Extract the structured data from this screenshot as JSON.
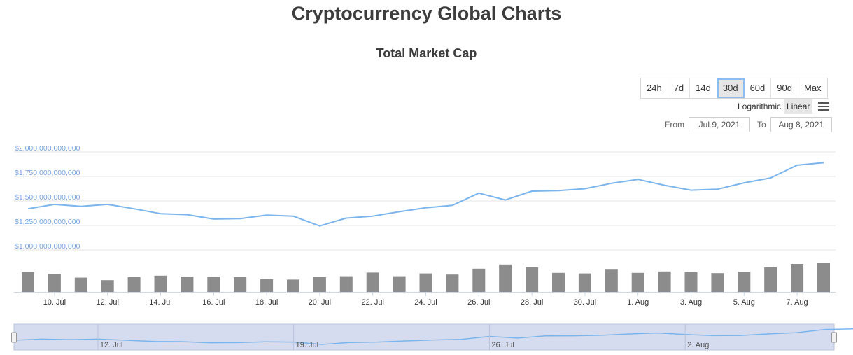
{
  "page": {
    "title": "Cryptocurrency Global Charts"
  },
  "toolbar": {
    "ranges": [
      "24h",
      "7d",
      "14d",
      "30d",
      "60d",
      "90d",
      "Max"
    ],
    "active_range": "30d",
    "scale_logarithmic": "Logarithmic",
    "scale_linear": "Linear",
    "active_scale": "Linear",
    "from_label": "From",
    "to_label": "To",
    "from_value": "Jul 9, 2021",
    "to_value": "Aug 8, 2021",
    "menu_icon": "hamburger-menu-icon"
  },
  "chart_data": {
    "type": "line",
    "title": "Total Market Cap",
    "x": [
      "Jul 9",
      "Jul 10",
      "Jul 11",
      "Jul 12",
      "Jul 13",
      "Jul 14",
      "Jul 15",
      "Jul 16",
      "Jul 17",
      "Jul 18",
      "Jul 19",
      "Jul 20",
      "Jul 21",
      "Jul 22",
      "Jul 23",
      "Jul 24",
      "Jul 25",
      "Jul 26",
      "Jul 27",
      "Jul 28",
      "Jul 29",
      "Jul 30",
      "Jul 31",
      "Aug 1",
      "Aug 2",
      "Aug 3",
      "Aug 4",
      "Aug 5",
      "Aug 6",
      "Aug 7",
      "Aug 8"
    ],
    "series": [
      {
        "type": "line",
        "color": "#7cb5ec",
        "values": [
          1420000000000,
          1465000000000,
          1445000000000,
          1465000000000,
          1420000000000,
          1370000000000,
          1360000000000,
          1315000000000,
          1320000000000,
          1355000000000,
          1345000000000,
          1245000000000,
          1325000000000,
          1345000000000,
          1390000000000,
          1430000000000,
          1455000000000,
          1580000000000,
          1510000000000,
          1600000000000,
          1605000000000,
          1625000000000,
          1680000000000,
          1720000000000,
          1660000000000,
          1610000000000,
          1620000000000,
          1685000000000,
          1735000000000,
          1865000000000,
          1890000000000
        ]
      },
      {
        "type": "bar",
        "color": "#8c8c8c",
        "values": [
          0.7,
          0.64,
          0.51,
          0.42,
          0.53,
          0.58,
          0.55,
          0.55,
          0.53,
          0.45,
          0.44,
          0.53,
          0.56,
          0.69,
          0.56,
          0.66,
          0.62,
          0.83,
          0.98,
          0.88,
          0.68,
          0.66,
          0.82,
          0.68,
          0.73,
          0.7,
          0.67,
          0.72,
          0.88,
          1.0,
          1.04
        ]
      }
    ],
    "ylim": [
      1000000000000,
      2000000000000
    ],
    "y_ticks": [
      1000000000000,
      1250000000000,
      1500000000000,
      1750000000000,
      2000000000000
    ],
    "y_tick_labels": [
      "$1,000,000,000,000",
      "$1,250,000,000,000",
      "$1,500,000,000,000",
      "$1,750,000,000,000",
      "$2,000,000,000,000"
    ],
    "x_tick_labels": [
      "10. Jul",
      "12. Jul",
      "14. Jul",
      "16. Jul",
      "18. Jul",
      "20. Jul",
      "22. Jul",
      "24. Jul",
      "26. Jul",
      "28. Jul",
      "30. Jul",
      "1. Aug",
      "3. Aug",
      "5. Aug",
      "7. Aug"
    ],
    "navigator_labels": [
      "12. Jul",
      "19. Jul",
      "26. Jul",
      "2. Aug"
    ],
    "grid": true,
    "legend": "none"
  }
}
